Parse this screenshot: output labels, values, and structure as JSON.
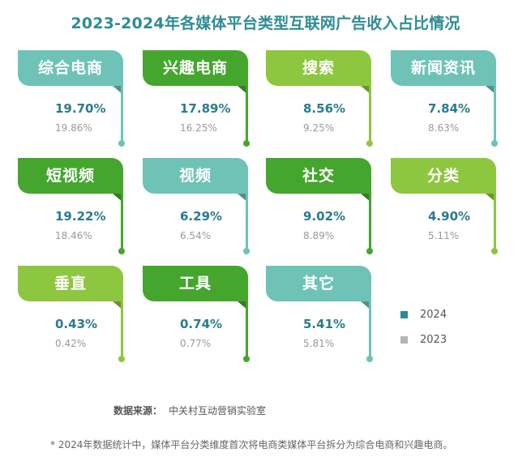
{
  "title": "2023-2024年各媒体平台类型互联网广告收入占比情况",
  "colors": {
    "teal": "#6ec3b6",
    "green": "#45a62e",
    "lime": "#8dc63f",
    "value_2024": "#2a8a9a",
    "value_2023": "#b5b5b5"
  },
  "chart_data": {
    "type": "table",
    "title": "2023-2024年各媒体平台类型互联网广告收入占比情况",
    "unit": "%",
    "series_names": [
      "2024",
      "2023"
    ],
    "categories": [
      "综合电商",
      "兴趣电商",
      "搜索",
      "新闻资讯",
      "短视频",
      "视频",
      "社交",
      "分类",
      "垂直",
      "工具",
      "其它"
    ],
    "values_2024": [
      19.7,
      17.89,
      8.56,
      7.84,
      19.22,
      6.29,
      9.02,
      4.9,
      0.43,
      0.74,
      5.41
    ],
    "values_2023": [
      19.86,
      16.25,
      9.25,
      8.63,
      18.46,
      6.54,
      8.89,
      5.11,
      0.42,
      0.77,
      5.81
    ]
  },
  "cards": [
    {
      "label": "综合电商",
      "v2024": "19.70%",
      "v2023": "19.86%",
      "color": "#6ec3b6"
    },
    {
      "label": "兴趣电商",
      "v2024": "17.89%",
      "v2023": "16.25%",
      "color": "#45a62e"
    },
    {
      "label": "搜索",
      "v2024": "8.56%",
      "v2023": "9.25%",
      "color": "#8dc63f"
    },
    {
      "label": "新闻资讯",
      "v2024": "7.84%",
      "v2023": "8.63%",
      "color": "#6ec3b6"
    },
    {
      "label": "短视频",
      "v2024": "19.22%",
      "v2023": "18.46%",
      "color": "#45a62e"
    },
    {
      "label": "视频",
      "v2024": "6.29%",
      "v2023": "6.54%",
      "color": "#6ec3b6"
    },
    {
      "label": "社交",
      "v2024": "9.02%",
      "v2023": "8.89%",
      "color": "#45a62e"
    },
    {
      "label": "分类",
      "v2024": "4.90%",
      "v2023": "5.11%",
      "color": "#8dc63f"
    },
    {
      "label": "垂直",
      "v2024": "0.43%",
      "v2023": "0.42%",
      "color": "#8dc63f"
    },
    {
      "label": "工具",
      "v2024": "0.74%",
      "v2023": "0.77%",
      "color": "#45a62e"
    },
    {
      "label": "其它",
      "v2024": "5.41%",
      "v2023": "5.81%",
      "color": "#6ec3b6"
    }
  ],
  "legend": [
    {
      "label": "2024",
      "color": "#2a8a9a"
    },
    {
      "label": "2023",
      "color": "#b5b5b5"
    }
  ],
  "source": {
    "label": "数据来源：",
    "text": "中关村互动营销实验室"
  },
  "note": "* 2024年数据统计中，媒体平台分类维度首次将电商类媒体平台拆分为综合电商和兴趣电商。"
}
